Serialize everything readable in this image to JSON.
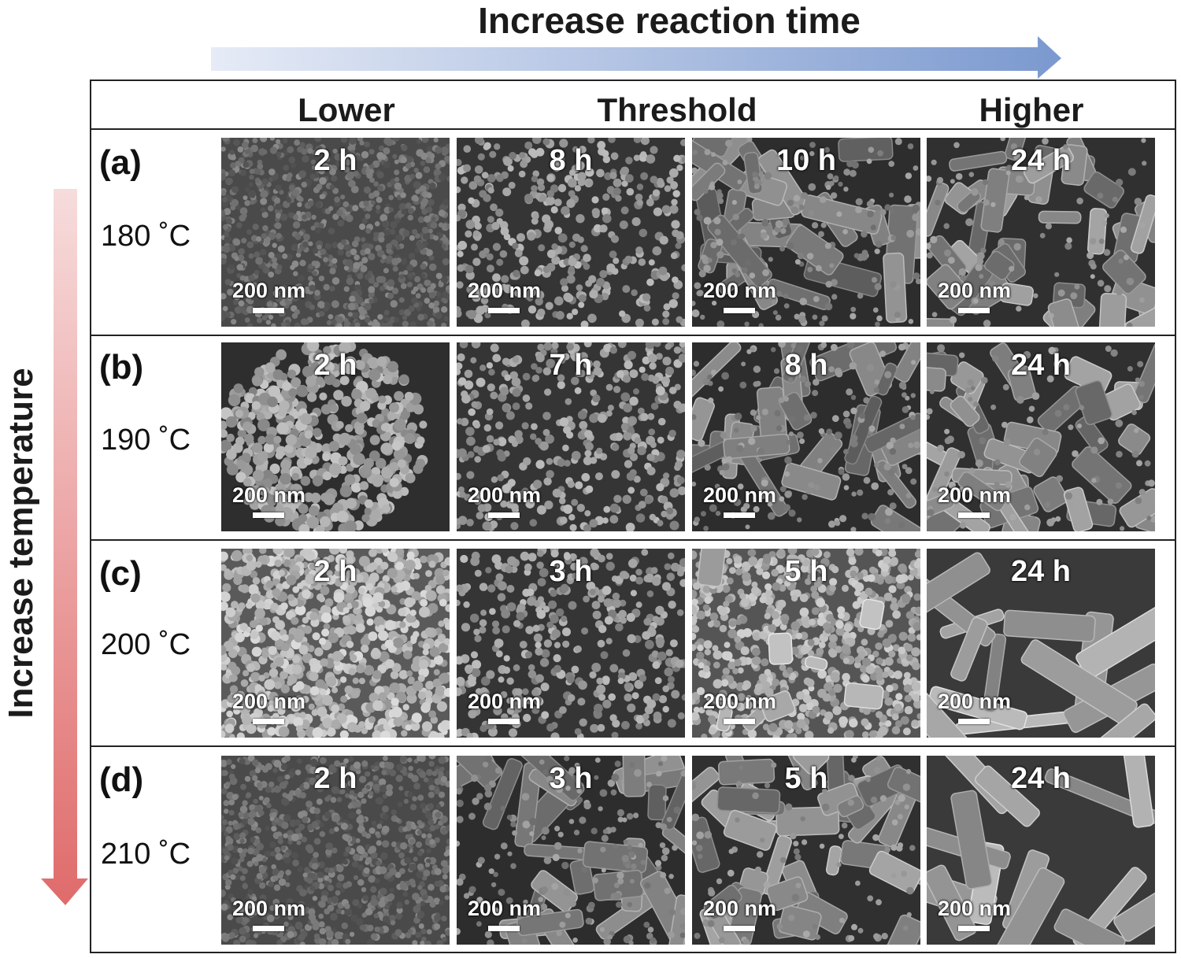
{
  "header": {
    "title": "Increase reaction time",
    "columns": [
      "Lower",
      "Threshold",
      "Higher"
    ]
  },
  "side_title": "Increase temperature",
  "colors": {
    "time_arrow_start": "#e6ebf6",
    "time_arrow_end": "#7b99cf",
    "temp_arrow_start": "#f7dcdc",
    "temp_arrow_end": "#e06b6b"
  },
  "scale_bar_label": "200 nm",
  "rows": [
    {
      "label": "(a)",
      "temperature": "180 ˚C",
      "panels": [
        {
          "time": "2 h",
          "morphology": "dense-particles"
        },
        {
          "time": "8 h",
          "morphology": "dispersed-particles"
        },
        {
          "time": "10 h",
          "morphology": "rods"
        },
        {
          "time": "24 h",
          "morphology": "crystals"
        }
      ]
    },
    {
      "label": "(b)",
      "temperature": "190 ˚C",
      "panels": [
        {
          "time": "2 h",
          "morphology": "particle-cluster"
        },
        {
          "time": "7 h",
          "morphology": "dispersed-particles"
        },
        {
          "time": "8 h",
          "morphology": "rods"
        },
        {
          "time": "24 h",
          "morphology": "crystals"
        }
      ]
    },
    {
      "label": "(c)",
      "temperature": "200 ˚C",
      "panels": [
        {
          "time": "2 h",
          "morphology": "bright-particles"
        },
        {
          "time": "3 h",
          "morphology": "dispersed-particles"
        },
        {
          "time": "5 h",
          "morphology": "particles-with-crystals"
        },
        {
          "time": "24 h",
          "morphology": "large-crystals"
        }
      ]
    },
    {
      "label": "(d)",
      "temperature": "210 ˚C",
      "panels": [
        {
          "time": "2 h",
          "morphology": "dense-particles"
        },
        {
          "time": "3 h",
          "morphology": "rods"
        },
        {
          "time": "5 h",
          "morphology": "crystals"
        },
        {
          "time": "24 h",
          "morphology": "large-crystals"
        }
      ]
    }
  ]
}
